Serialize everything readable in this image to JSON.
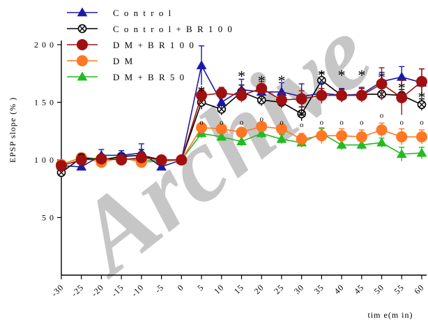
{
  "chart_data": {
    "type": "line",
    "title": "",
    "xlabel": "tim e(m in)",
    "ylabel": "EPSP slope (% )",
    "x": [
      -30,
      -25,
      -20,
      -15,
      -10,
      -5,
      0,
      5,
      10,
      15,
      20,
      25,
      30,
      35,
      40,
      45,
      50,
      55,
      60
    ],
    "x_tick_labels": [
      "-30",
      "-25",
      "-20",
      "-15",
      "-10",
      "-5",
      "0",
      "5",
      "10",
      "15",
      "20",
      "25",
      "30",
      "35",
      "40",
      "45",
      "50",
      "55",
      "60"
    ],
    "y_ticks": [
      50,
      100,
      150,
      200
    ],
    "y_tick_labels": [
      "5 0",
      "1 0 0",
      "1 5 0",
      "2 0 0"
    ],
    "xlim": [
      -30,
      60
    ],
    "ylim": [
      0,
      200
    ],
    "grid": false,
    "legend_position": "top-left",
    "series": [
      {
        "name": "C o n t r o l",
        "color": "#1a1aa8",
        "marker": "triangle",
        "values": [
          95,
          94,
          104,
          104,
          106,
          94,
          100,
          182,
          150,
          161,
          159,
          159,
          155,
          158,
          156,
          157,
          168,
          172,
          167
        ],
        "errors": [
          3,
          3,
          5,
          4,
          8,
          3,
          0,
          17,
          7,
          9,
          7,
          8,
          11,
          9,
          6,
          6,
          8,
          9,
          12
        ]
      },
      {
        "name": "C o n t r o l + B R 1 0 0",
        "color": "#000000",
        "marker": "circle-x",
        "values": [
          89,
          102,
          100,
          103,
          104,
          100,
          100,
          150,
          144,
          159,
          152,
          150,
          140,
          169,
          156,
          157,
          157,
          156,
          148
        ],
        "errors": [
          2,
          3,
          4,
          3,
          5,
          2,
          0,
          6,
          5,
          6,
          5,
          5,
          6,
          7,
          5,
          5,
          5,
          5,
          5
        ]
      },
      {
        "name": "D M + B R 1 0 0",
        "color": "#a01010",
        "marker": "circle",
        "values": [
          95,
          100,
          101,
          100,
          102,
          100,
          100,
          156,
          158,
          156,
          162,
          152,
          153,
          156,
          156,
          156,
          166,
          154,
          168
        ],
        "errors": [
          3,
          3,
          4,
          4,
          5,
          2,
          0,
          6,
          5,
          6,
          6,
          6,
          7,
          6,
          5,
          6,
          14,
          15,
          11
        ]
      },
      {
        "name": "D M",
        "color": "#ff7722",
        "marker": "circle",
        "values": [
          96,
          102,
          98,
          102,
          98,
          99,
          100,
          128,
          127,
          124,
          129,
          127,
          118,
          121,
          121,
          120,
          126,
          120,
          120
        ],
        "errors": [
          3,
          3,
          3,
          4,
          3,
          2,
          0,
          3,
          3,
          3,
          3,
          4,
          5,
          7,
          6,
          6,
          6,
          7,
          6
        ]
      },
      {
        "name": "D M + B R 5 0",
        "color": "#22bb22",
        "marker": "triangle",
        "values": [
          96,
          102,
          101,
          101,
          100,
          99,
          100,
          123,
          120,
          116,
          123,
          118,
          115,
          123,
          113,
          113,
          115,
          105,
          106
        ],
        "errors": [
          3,
          3,
          3,
          4,
          3,
          2,
          0,
          4,
          3,
          4,
          4,
          4,
          4,
          4,
          4,
          4,
          4,
          6,
          5
        ]
      }
    ],
    "annotations": {
      "stars": [
        {
          "x": 5,
          "y": 160
        },
        {
          "x": 15,
          "y": 173
        },
        {
          "x": 20,
          "y": 169
        },
        {
          "x": 25,
          "y": 169
        },
        {
          "x": 30,
          "y": 139
        },
        {
          "x": 35,
          "y": 174
        },
        {
          "x": 40,
          "y": 174
        },
        {
          "x": 45,
          "y": 174
        },
        {
          "x": 50,
          "y": 172
        },
        {
          "x": 55,
          "y": 163
        },
        {
          "x": 60,
          "y": 155
        }
      ],
      "circles": [
        {
          "x": 5,
          "y": 133
        },
        {
          "x": 10,
          "y": 133
        },
        {
          "x": 15,
          "y": 133
        },
        {
          "x": 20,
          "y": 136
        },
        {
          "x": 25,
          "y": 133
        },
        {
          "x": 30,
          "y": 131
        },
        {
          "x": 35,
          "y": 133
        },
        {
          "x": 40,
          "y": 133
        },
        {
          "x": 45,
          "y": 133
        },
        {
          "x": 50,
          "y": 139
        },
        {
          "x": 55,
          "y": 133
        },
        {
          "x": 60,
          "y": 133
        }
      ]
    }
  }
}
